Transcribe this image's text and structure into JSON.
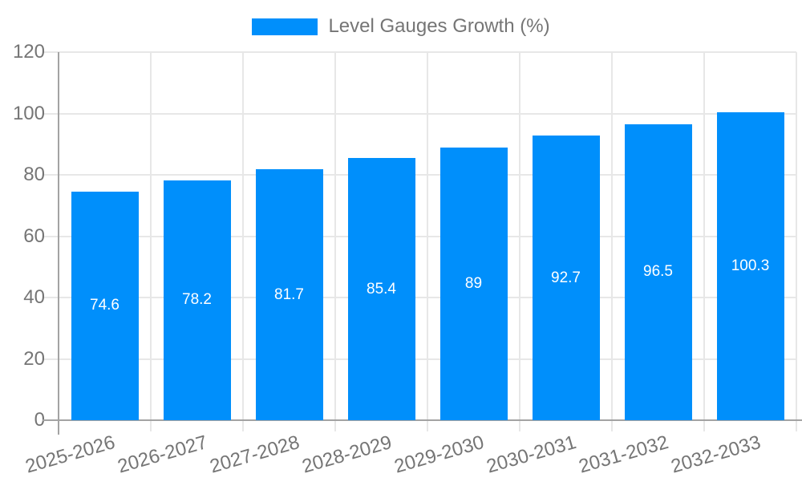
{
  "chart_data": {
    "type": "bar",
    "title": "Level Gauges Growth (%)",
    "series_name": "Level Gauges Growth (%)",
    "categories": [
      "2025-2026",
      "2026-2027",
      "2027-2028",
      "2028-2029",
      "2029-2030",
      "2030-2031",
      "2031-2032",
      "2032-2033"
    ],
    "values": [
      74.6,
      78.2,
      81.7,
      85.4,
      89,
      92.7,
      96.5,
      100.3
    ],
    "value_labels": [
      "74.6",
      "78.2",
      "81.7",
      "85.4",
      "89",
      "92.7",
      "96.5",
      "100.3"
    ],
    "xlabel": "",
    "ylabel": "",
    "ylim": [
      0,
      120
    ],
    "ytick_step": 20,
    "ytick_labels": [
      "0",
      "20",
      "40",
      "60",
      "80",
      "100",
      "120"
    ],
    "grid": true,
    "legend_position": "top"
  },
  "colors": {
    "bar": "#008FFB",
    "text": "#757575",
    "grid": "#e7e7e7",
    "axis": "#a3a3a3",
    "value_label": "#ffffff",
    "background": "#ffffff"
  }
}
